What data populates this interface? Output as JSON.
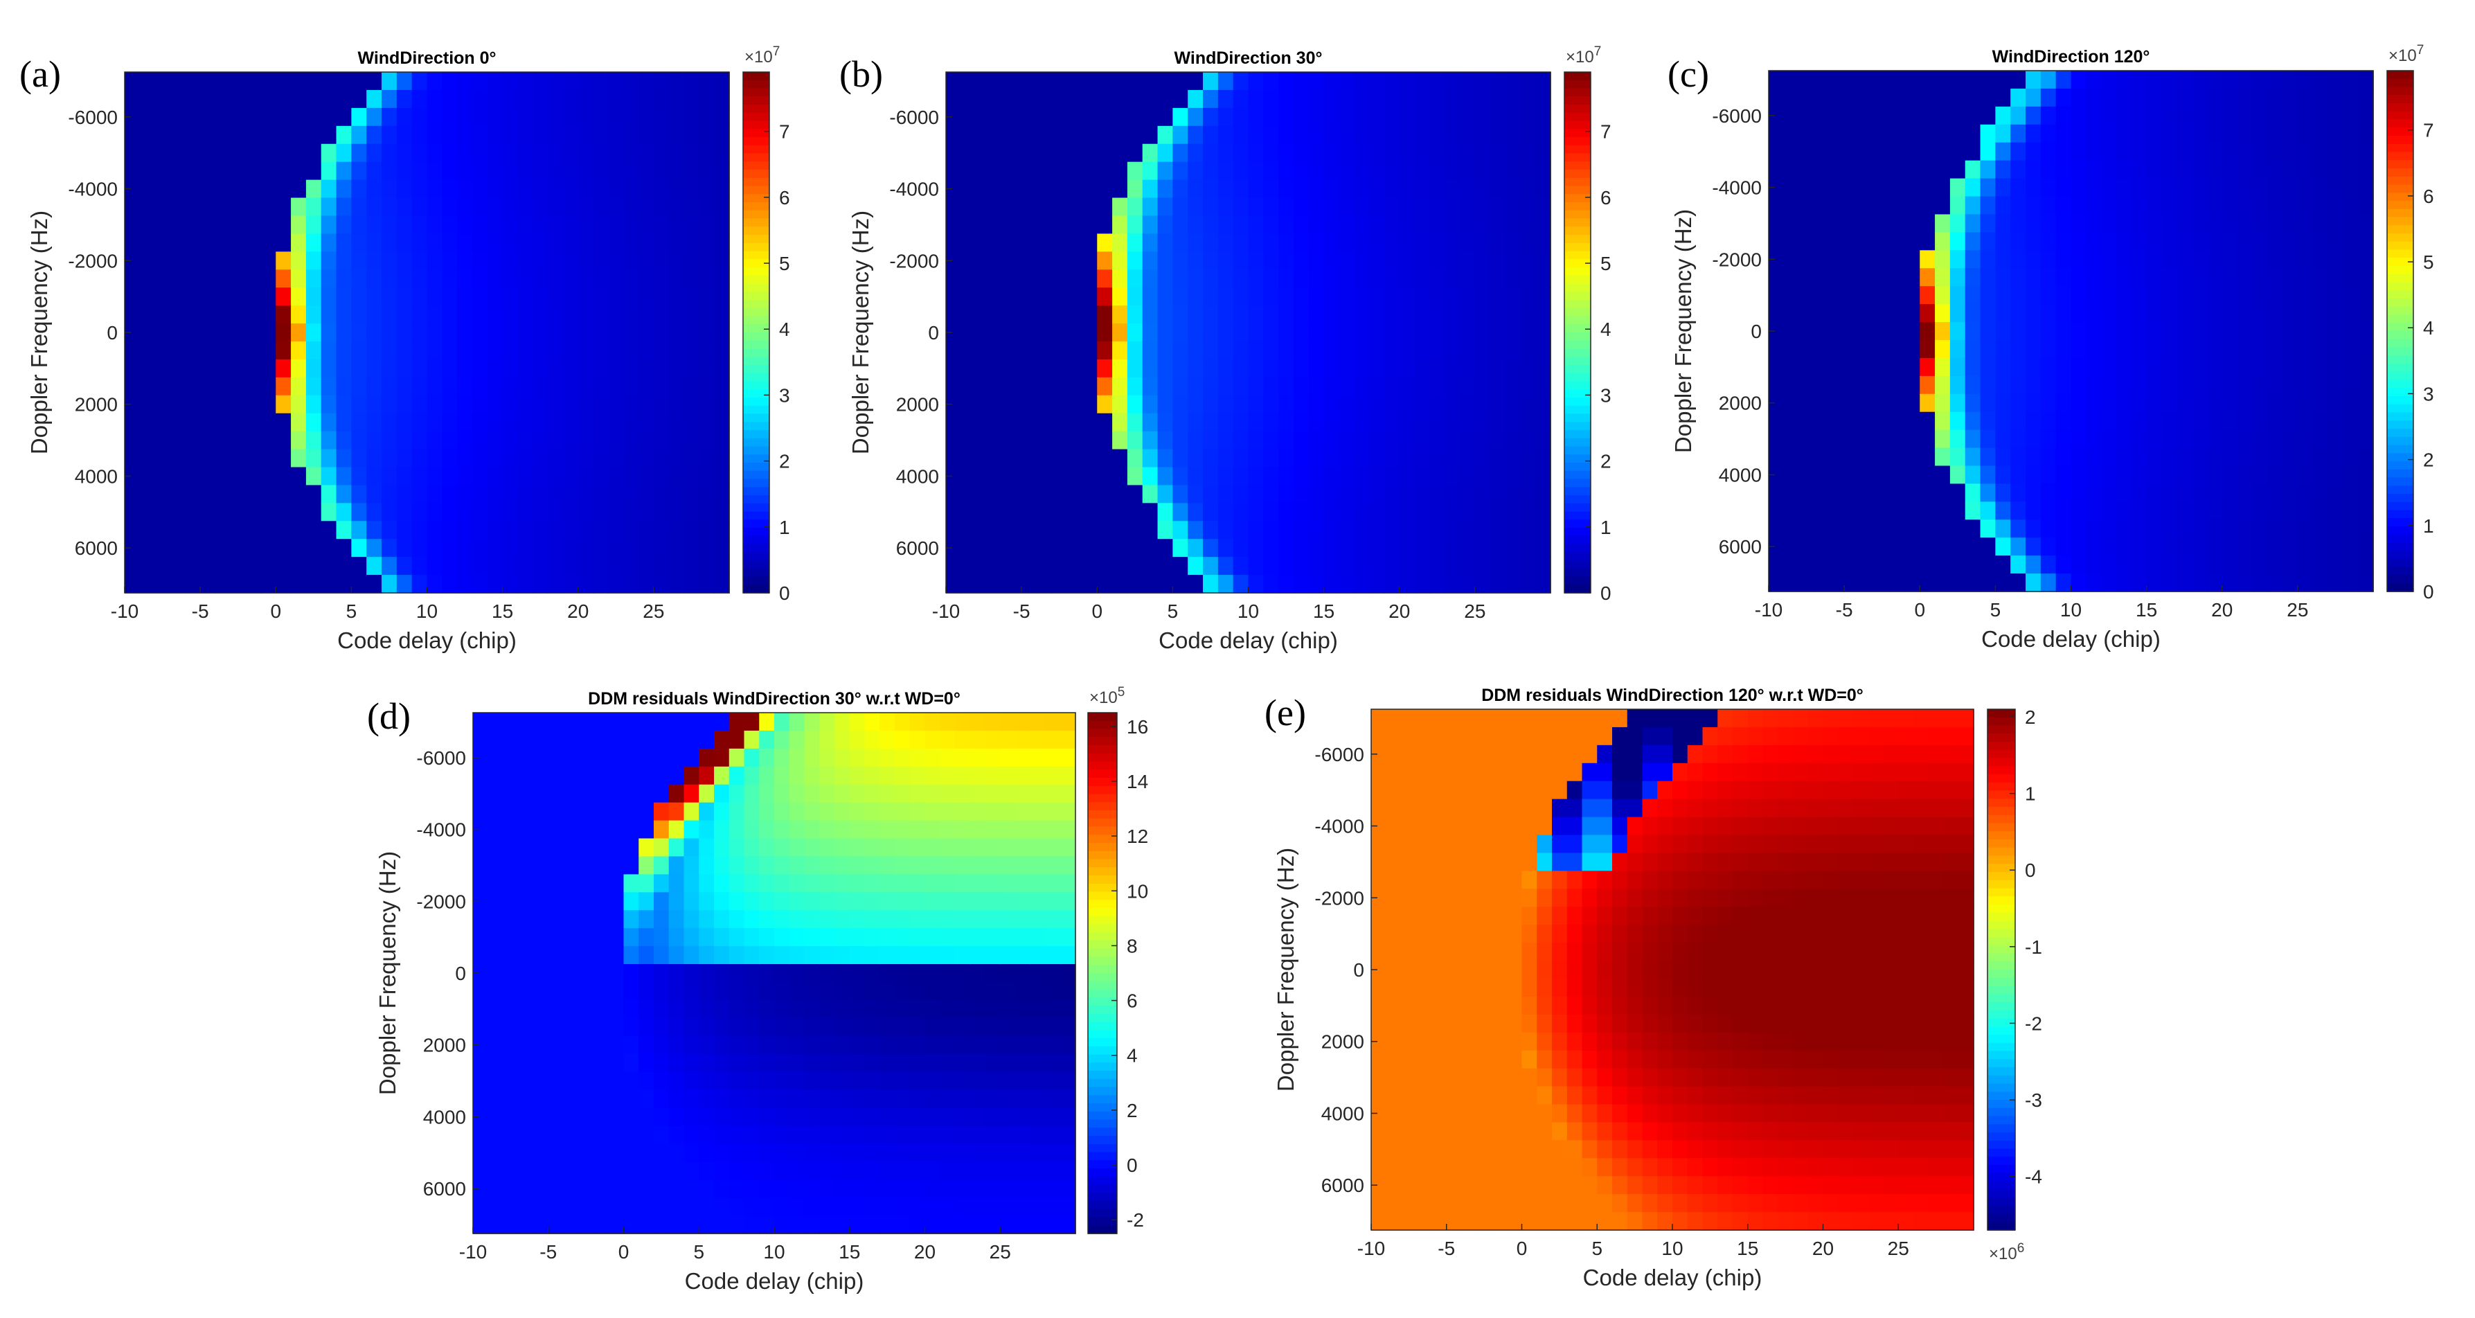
{
  "chart_data": [
    {
      "id": "a",
      "type": "heatmap",
      "panel_label": "(a)",
      "title": "WindDirection 0°",
      "xlabel": "Code delay (chip)",
      "ylabel": "Doppler Frequency (Hz)",
      "xlim": [
        -10,
        30
      ],
      "ylim": [
        -7250,
        7250
      ],
      "xticks": [
        -10,
        -5,
        0,
        5,
        10,
        15,
        20,
        25
      ],
      "yticks": [
        -6000,
        -4000,
        -2000,
        0,
        2000,
        4000,
        6000
      ],
      "colorbar": {
        "min": 0,
        "max": 7.9,
        "ticks": [
          0,
          1,
          2,
          3,
          4,
          5,
          6,
          7
        ],
        "exponent_base": "×10",
        "exponent": "7",
        "colormap": "jet"
      },
      "field": {
        "kind": "ddm",
        "peak": 7.8,
        "xf": 0,
        "f0": 0,
        "a": 7.0,
        "sigma": 0.32,
        "interior": 1.8,
        "halo": 1.15
      }
    },
    {
      "id": "b",
      "type": "heatmap",
      "panel_label": "(b)",
      "title": "WindDirection 30°",
      "xlabel": "Code delay (chip)",
      "ylabel": "Doppler Frequency (Hz)",
      "xlim": [
        -10,
        30
      ],
      "ylim": [
        -7250,
        7250
      ],
      "xticks": [
        -10,
        -5,
        0,
        5,
        10,
        15,
        20,
        25
      ],
      "yticks": [
        -6000,
        -4000,
        -2000,
        0,
        2000,
        4000,
        6000
      ],
      "colorbar": {
        "min": 0,
        "max": 7.9,
        "ticks": [
          0,
          1,
          2,
          3,
          4,
          5,
          6,
          7
        ],
        "exponent_base": "×10",
        "exponent": "7",
        "colormap": "jet"
      },
      "field": {
        "kind": "ddm",
        "peak": 7.8,
        "xf": 0,
        "f0": -150,
        "a": 6.8,
        "sigma": 0.34,
        "interior": 1.9,
        "halo": 1.1
      }
    },
    {
      "id": "c",
      "type": "heatmap",
      "panel_label": "(c)",
      "title": "WindDirection 120°",
      "xlabel": "Code delay (chip)",
      "ylabel": "Doppler Frequency (Hz)",
      "xlim": [
        -10,
        30
      ],
      "ylim": [
        -7250,
        7250
      ],
      "xticks": [
        -10,
        -5,
        0,
        5,
        10,
        15,
        20,
        25
      ],
      "yticks": [
        -6000,
        -4000,
        -2000,
        0,
        2000,
        4000,
        6000
      ],
      "colorbar": {
        "min": 0,
        "max": 7.9,
        "ticks": [
          0,
          1,
          2,
          3,
          4,
          5,
          6,
          7
        ],
        "exponent_base": "×10",
        "exponent": "7",
        "colormap": "jet"
      },
      "field": {
        "kind": "ddm",
        "peak": 7.8,
        "xf": 0,
        "f0": 100,
        "a": 6.5,
        "sigma": 0.3,
        "interior": 1.6,
        "halo": 1.0
      }
    },
    {
      "id": "d",
      "type": "heatmap",
      "panel_label": "(d)",
      "title": "DDM residuals WindDirection 30° w.r.t WD=0°",
      "xlabel": "Code delay (chip)",
      "ylabel": "Doppler Frequency (Hz)",
      "xlim": [
        -10,
        30
      ],
      "ylim": [
        -7250,
        7250
      ],
      "xticks": [
        -10,
        -5,
        0,
        5,
        10,
        15,
        20,
        25
      ],
      "yticks": [
        -6000,
        -4000,
        -2000,
        0,
        2000,
        4000,
        6000
      ],
      "colorbar": {
        "min": -2.5,
        "max": 16.5,
        "ticks": [
          -2,
          0,
          2,
          4,
          6,
          8,
          10,
          12,
          14,
          16
        ],
        "exponent_base": "×10",
        "exponent": "5",
        "colormap": "jet"
      },
      "field": {
        "kind": "res30",
        "bg": 0,
        "xf": 0,
        "a": 7.0
      }
    },
    {
      "id": "e",
      "type": "heatmap",
      "panel_label": "(e)",
      "title": "DDM residuals WindDirection 120° w.r.t WD=0°",
      "xlabel": "Code delay (chip)",
      "ylabel": "Doppler Frequency (Hz)",
      "xlim": [
        -10,
        30
      ],
      "ylim": [
        -7250,
        7250
      ],
      "xticks": [
        -10,
        -5,
        0,
        5,
        10,
        15,
        20,
        25
      ],
      "yticks": [
        -6000,
        -4000,
        -2000,
        0,
        2000,
        4000,
        6000
      ],
      "colorbar": {
        "min": -4.7,
        "max": 2.1,
        "ticks": [
          -4,
          -3,
          -2,
          -1,
          0,
          1,
          2
        ],
        "exponent_base": "×10",
        "exponent": "6",
        "colormap": "jet"
      },
      "field": {
        "kind": "res120",
        "bg": 0.45,
        "xf": 0,
        "a": 7.0
      }
    }
  ]
}
